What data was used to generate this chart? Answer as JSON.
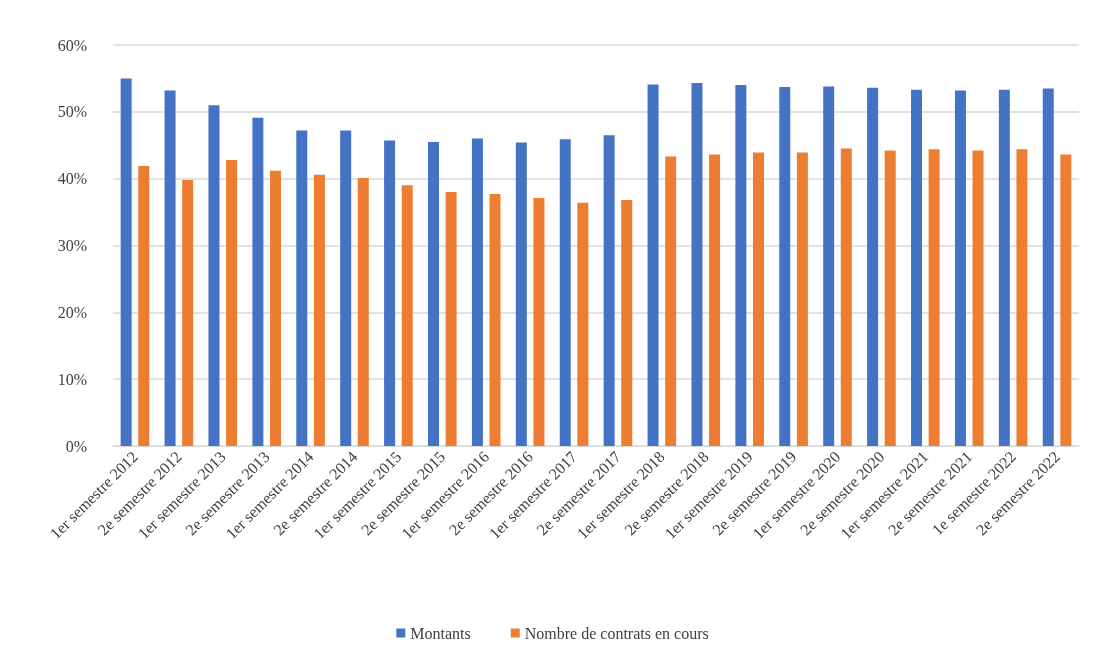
{
  "chart_data": {
    "type": "bar",
    "categories": [
      "1er semestre 2012",
      "2e semestre 2012",
      "1er semestre 2013",
      "2e semestre 2013",
      "1er semestre 2014",
      "2e semestre 2014",
      "1er semestre 2015",
      "2e semestre 2015",
      "1er semestre 2016",
      "2e semestre 2016",
      "1er semestre 2017",
      "2e semestre 2017",
      "1er semestre 2018",
      "2e semestre 2018",
      "1er semestre 2019",
      "2e semestre 2019",
      "1er semestre 2020",
      "2e semestre 2020",
      "1er semestre 2021",
      "2e semestre 2021",
      "1e semestre 2022",
      "2e semestre 2022"
    ],
    "series": [
      {
        "name": "Montants",
        "color": "#4472c4",
        "values": [
          55.0,
          53.2,
          51.0,
          49.1,
          47.2,
          47.2,
          45.7,
          45.5,
          46.0,
          45.4,
          45.9,
          46.5,
          54.1,
          54.3,
          54.0,
          53.7,
          53.8,
          53.6,
          53.3,
          53.2,
          53.3,
          53.5
        ]
      },
      {
        "name": "Nombre de contrats en cours",
        "color": "#ed7d31",
        "values": [
          41.9,
          39.8,
          42.8,
          41.2,
          40.6,
          40.1,
          39.0,
          38.0,
          37.7,
          37.1,
          36.4,
          36.8,
          43.3,
          43.6,
          43.9,
          43.9,
          44.5,
          44.2,
          44.4,
          44.2,
          44.4,
          43.6
        ]
      }
    ],
    "ylim": [
      0,
      60
    ],
    "yticks": [
      {
        "value": 0,
        "label": "0%"
      },
      {
        "value": 10,
        "label": "10%"
      },
      {
        "value": 20,
        "label": "20%"
      },
      {
        "value": 30,
        "label": "30%"
      },
      {
        "value": 40,
        "label": "40%"
      },
      {
        "value": 50,
        "label": "50%"
      },
      {
        "value": 60,
        "label": "60%"
      }
    ],
    "grid": "y",
    "legend": "bottom"
  }
}
